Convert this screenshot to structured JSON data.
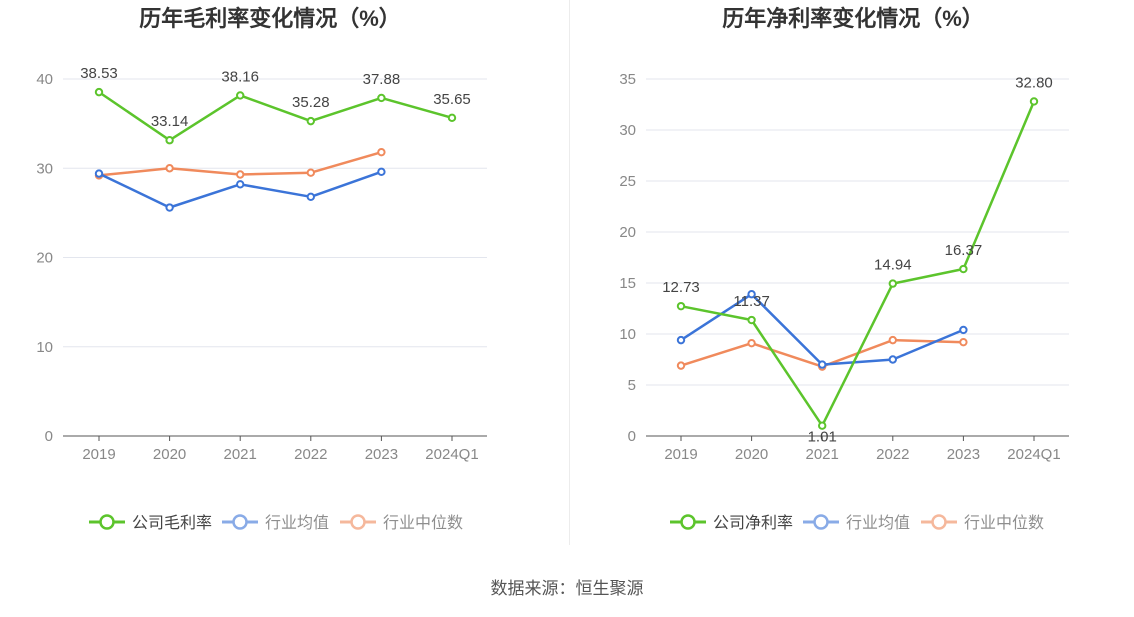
{
  "source_label": "数据来源：恒生聚源",
  "colors": {
    "company": "#5cc42c",
    "industry_avg": "#3b74d8",
    "industry_median": "#f08a5c",
    "grid": "#e3e6ee",
    "axis": "#555555",
    "tick_text": "#888888",
    "title_text": "#333333"
  },
  "chart_data": [
    {
      "type": "line",
      "title": "历年毛利率变化情况（%）",
      "categories": [
        "2019",
        "2020",
        "2021",
        "2022",
        "2023",
        "2024Q1"
      ],
      "ylim": [
        0,
        40
      ],
      "yticks": [
        0,
        10,
        20,
        30,
        40
      ],
      "grid": true,
      "legend_position": "bottom",
      "series": [
        {
          "name": "公司毛利率",
          "color_key": "company",
          "values": [
            38.53,
            33.14,
            38.16,
            35.28,
            37.88,
            35.65
          ],
          "labels": [
            "38.53",
            "33.14",
            "38.16",
            "35.28",
            "37.88",
            "35.65"
          ]
        },
        {
          "name": "行业均值",
          "color_key": "industry_avg",
          "values": [
            29.4,
            25.6,
            28.2,
            26.8,
            29.6,
            null
          ]
        },
        {
          "name": "行业中位数",
          "color_key": "industry_median",
          "values": [
            29.2,
            30.0,
            29.3,
            29.5,
            31.8,
            null
          ]
        }
      ]
    },
    {
      "type": "line",
      "title": "历年净利率变化情况（%）",
      "categories": [
        "2019",
        "2020",
        "2021",
        "2022",
        "2023",
        "2024Q1"
      ],
      "ylim": [
        0,
        35
      ],
      "yticks": [
        0,
        5,
        10,
        15,
        20,
        25,
        30,
        35
      ],
      "grid": true,
      "legend_position": "bottom",
      "series": [
        {
          "name": "公司净利率",
          "color_key": "company",
          "values": [
            12.73,
            11.37,
            1.01,
            14.94,
            16.37,
            32.8
          ],
          "labels": [
            "12.73",
            "11.37",
            "1.01",
            "14.94",
            "16.37",
            "32.80"
          ]
        },
        {
          "name": "行业均值",
          "color_key": "industry_avg",
          "values": [
            9.4,
            13.9,
            7.0,
            7.5,
            10.4,
            null
          ]
        },
        {
          "name": "行业中位数",
          "color_key": "industry_median",
          "values": [
            6.9,
            9.1,
            6.8,
            9.4,
            9.2,
            null
          ]
        }
      ]
    }
  ]
}
